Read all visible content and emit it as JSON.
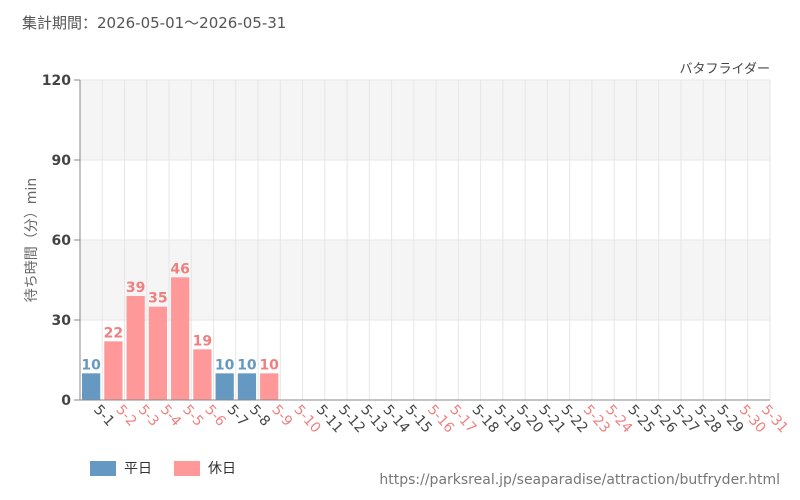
{
  "header": {
    "period": "集計期間：2026-05-01〜2026-05-31"
  },
  "footer": {
    "source_url": "https://parksreal.jp/seaparadise/attraction/butfryder.html"
  },
  "colors": {
    "weekday": "#6699c2",
    "holiday": "#ff9999",
    "holiday_text": "#f08080",
    "grid": "#e6e6e6",
    "band": "#f5f5f5",
    "axis_text": "#444444"
  },
  "legend": {
    "weekday": "平日",
    "holiday": "休日"
  },
  "chart_data": {
    "type": "bar",
    "title": "",
    "series_label": "バタフライダー",
    "ylabel": "待ち時間（分）min",
    "xlabel": "",
    "ylim": [
      0,
      120
    ],
    "yticks": [
      0,
      30,
      60,
      90,
      120
    ],
    "legend_position": "bottom-left",
    "categories": [
      "5-1",
      "5-2",
      "5-3",
      "5-4",
      "5-5",
      "5-6",
      "5-7",
      "5-8",
      "5-9",
      "5-10",
      "5-11",
      "5-12",
      "5-13",
      "5-14",
      "5-15",
      "5-16",
      "5-17",
      "5-18",
      "5-19",
      "5-20",
      "5-21",
      "5-22",
      "5-23",
      "5-24",
      "5-25",
      "5-26",
      "5-27",
      "5-28",
      "5-29",
      "5-30",
      "5-31"
    ],
    "day_type": [
      "weekday",
      "holiday",
      "holiday",
      "holiday",
      "holiday",
      "holiday",
      "weekday",
      "weekday",
      "holiday",
      "holiday",
      "weekday",
      "weekday",
      "weekday",
      "weekday",
      "weekday",
      "holiday",
      "holiday",
      "weekday",
      "weekday",
      "weekday",
      "weekday",
      "weekday",
      "holiday",
      "holiday",
      "weekday",
      "weekday",
      "weekday",
      "weekday",
      "weekday",
      "holiday",
      "holiday"
    ],
    "values": [
      10,
      22,
      39,
      35,
      46,
      19,
      10,
      10,
      10,
      null,
      null,
      null,
      null,
      null,
      null,
      null,
      null,
      null,
      null,
      null,
      null,
      null,
      null,
      null,
      null,
      null,
      null,
      null,
      null,
      null,
      null
    ]
  }
}
